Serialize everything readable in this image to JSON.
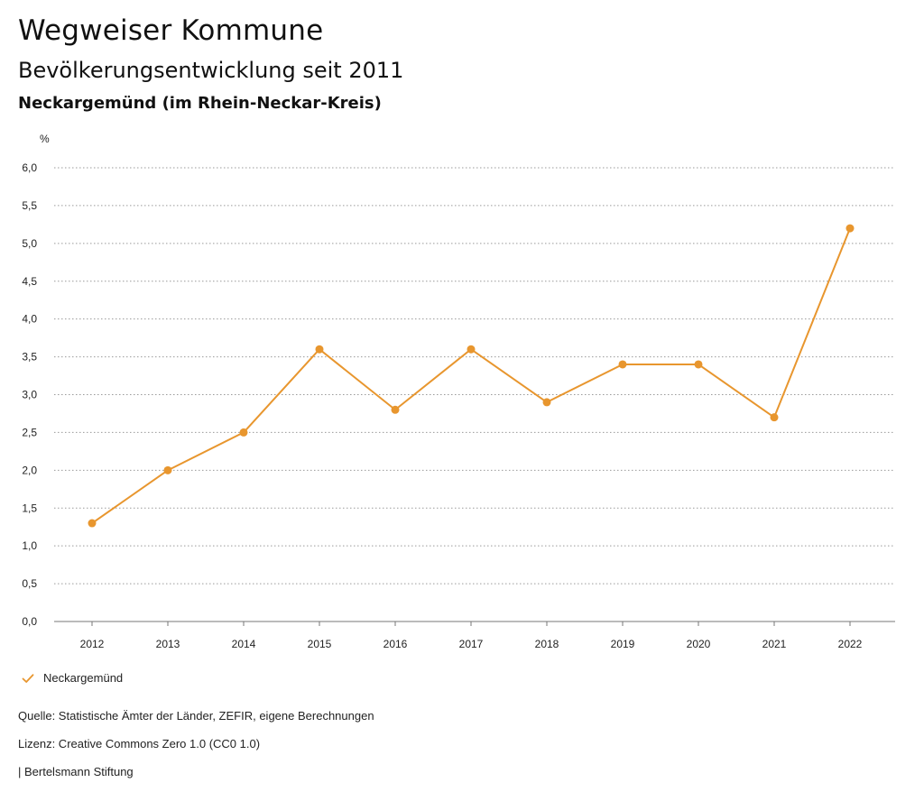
{
  "header": {
    "title": "Wegweiser Kommune",
    "subtitle": "Bevölkerungsentwicklung seit 2011",
    "region": "Neckargemünd (im Rhein-Neckar-Kreis)"
  },
  "chart_data": {
    "type": "line",
    "ylabel": "%",
    "xlabel": "",
    "x": [
      "2012",
      "2013",
      "2014",
      "2015",
      "2016",
      "2017",
      "2018",
      "2019",
      "2020",
      "2021",
      "2022"
    ],
    "series": [
      {
        "name": "Neckargemünd",
        "values": [
          1.3,
          2.0,
          2.5,
          3.6,
          2.8,
          3.6,
          2.9,
          3.4,
          3.4,
          2.7,
          5.2
        ],
        "color": "#e8962e"
      }
    ],
    "ylim": [
      0,
      6
    ],
    "yticks": [
      "0,0",
      "0,5",
      "1,0",
      "1,5",
      "2,0",
      "2,5",
      "3,0",
      "3,5",
      "4,0",
      "4,5",
      "5,0",
      "5,5",
      "6,0"
    ],
    "grid": true,
    "legend": "bottom-left"
  },
  "legend": {
    "label": "Neckargemünd",
    "icon": "check-icon",
    "color": "#e8962e"
  },
  "footer": {
    "source": "Quelle: Statistische Ämter der Länder, ZEFIR, eigene Berechnungen",
    "license": "Lizenz: Creative Commons Zero 1.0 (CC0 1.0)",
    "publisher": "| Bertelsmann Stiftung"
  }
}
